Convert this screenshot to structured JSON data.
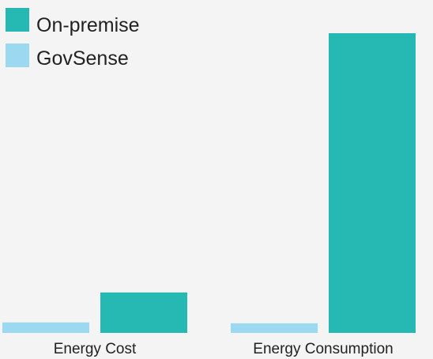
{
  "chart_data": {
    "type": "bar",
    "categories": [
      "Energy Cost",
      "Energy Consumption"
    ],
    "series": [
      {
        "name": "GovSense",
        "values": [
          3.5,
          3.2
        ],
        "color": "#9ad9f0"
      },
      {
        "name": "On-premise",
        "values": [
          13.5,
          100
        ],
        "color": "#26b8b3"
      }
    ],
    "ylim": [
      0,
      100
    ],
    "grid": false,
    "legend": {
      "placement": "top-left",
      "order": [
        "On-premise",
        "GovSense"
      ]
    }
  }
}
